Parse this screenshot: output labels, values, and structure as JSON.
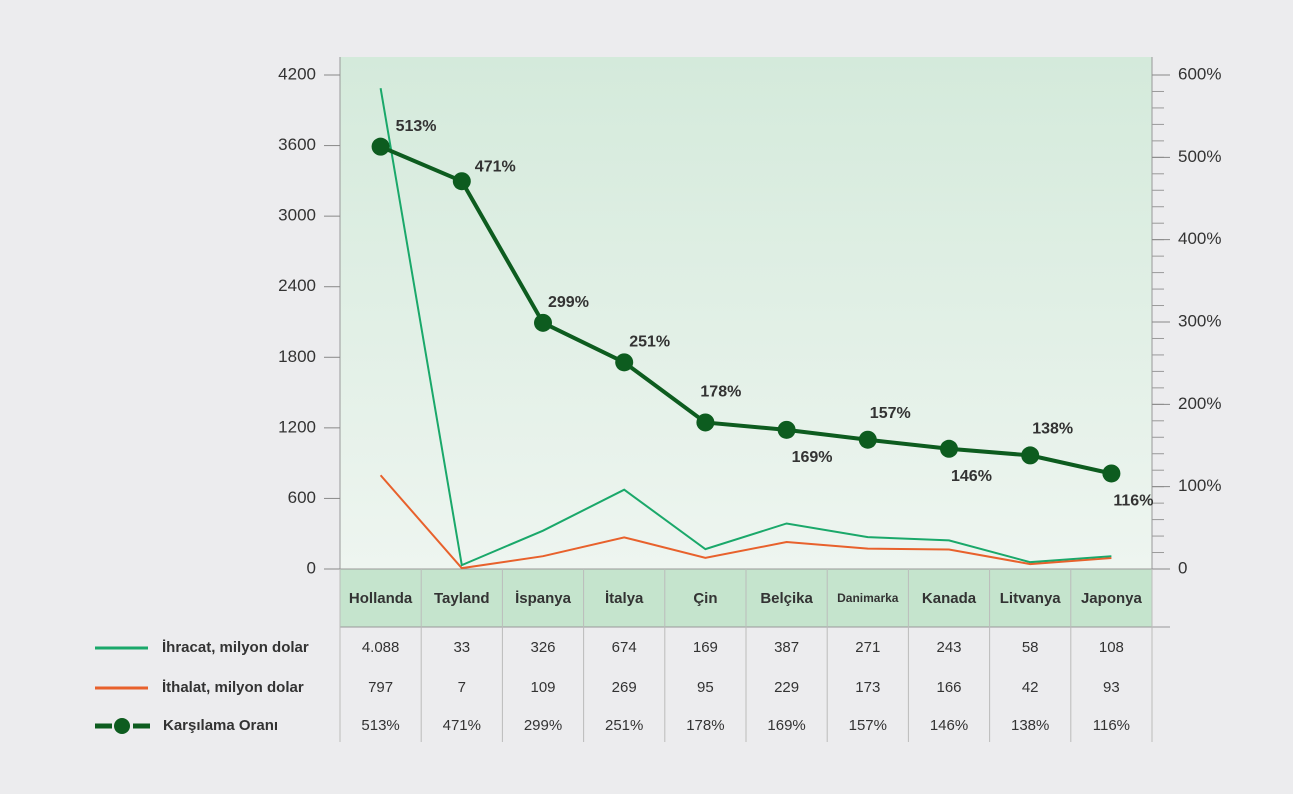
{
  "chart_data": {
    "type": "line",
    "categories": [
      "Hollanda",
      "Tayland",
      "İspanya",
      "İtalya",
      "Çin",
      "Belçika",
      "Danimarka",
      "Kanada",
      "Litvanya",
      "Japonya"
    ],
    "series": [
      {
        "name": "İhracat, milyon dolar",
        "color": "#1aa86a",
        "values": [
          4088,
          33,
          326,
          674,
          169,
          387,
          271,
          243,
          58,
          108
        ],
        "value_labels": [
          "4.088",
          "33",
          "326",
          "674",
          "169",
          "387",
          "271",
          "243",
          "58",
          "108"
        ]
      },
      {
        "name": "İthalat, milyon dolar",
        "color": "#e8612c",
        "values": [
          797,
          7,
          109,
          269,
          95,
          229,
          173,
          166,
          42,
          93
        ]
      },
      {
        "name": "Karşılama Oranı",
        "color": "#0d5c1f",
        "axis": "y2",
        "values": [
          513,
          471,
          299,
          251,
          178,
          169,
          157,
          146,
          138,
          116
        ],
        "value_labels": [
          "513%",
          "471%",
          "299%",
          "251%",
          "178%",
          "169%",
          "157%",
          "146%",
          "138%",
          "116%"
        ]
      }
    ],
    "ylim": [
      0,
      4200
    ],
    "yticks": [
      0,
      600,
      1200,
      1800,
      2400,
      3000,
      3600,
      4200
    ],
    "y2lim": [
      0,
      600
    ],
    "y2ticks": [
      0,
      {
        "value": 100,
        "label": "100%"
      },
      {
        "value": 200,
        "label": "200%"
      },
      {
        "value": 300,
        "label": "300%"
      },
      {
        "value": 400,
        "label": "400%"
      },
      {
        "value": 500,
        "label": "500%"
      },
      {
        "value": 600,
        "label": "600%"
      }
    ]
  }
}
